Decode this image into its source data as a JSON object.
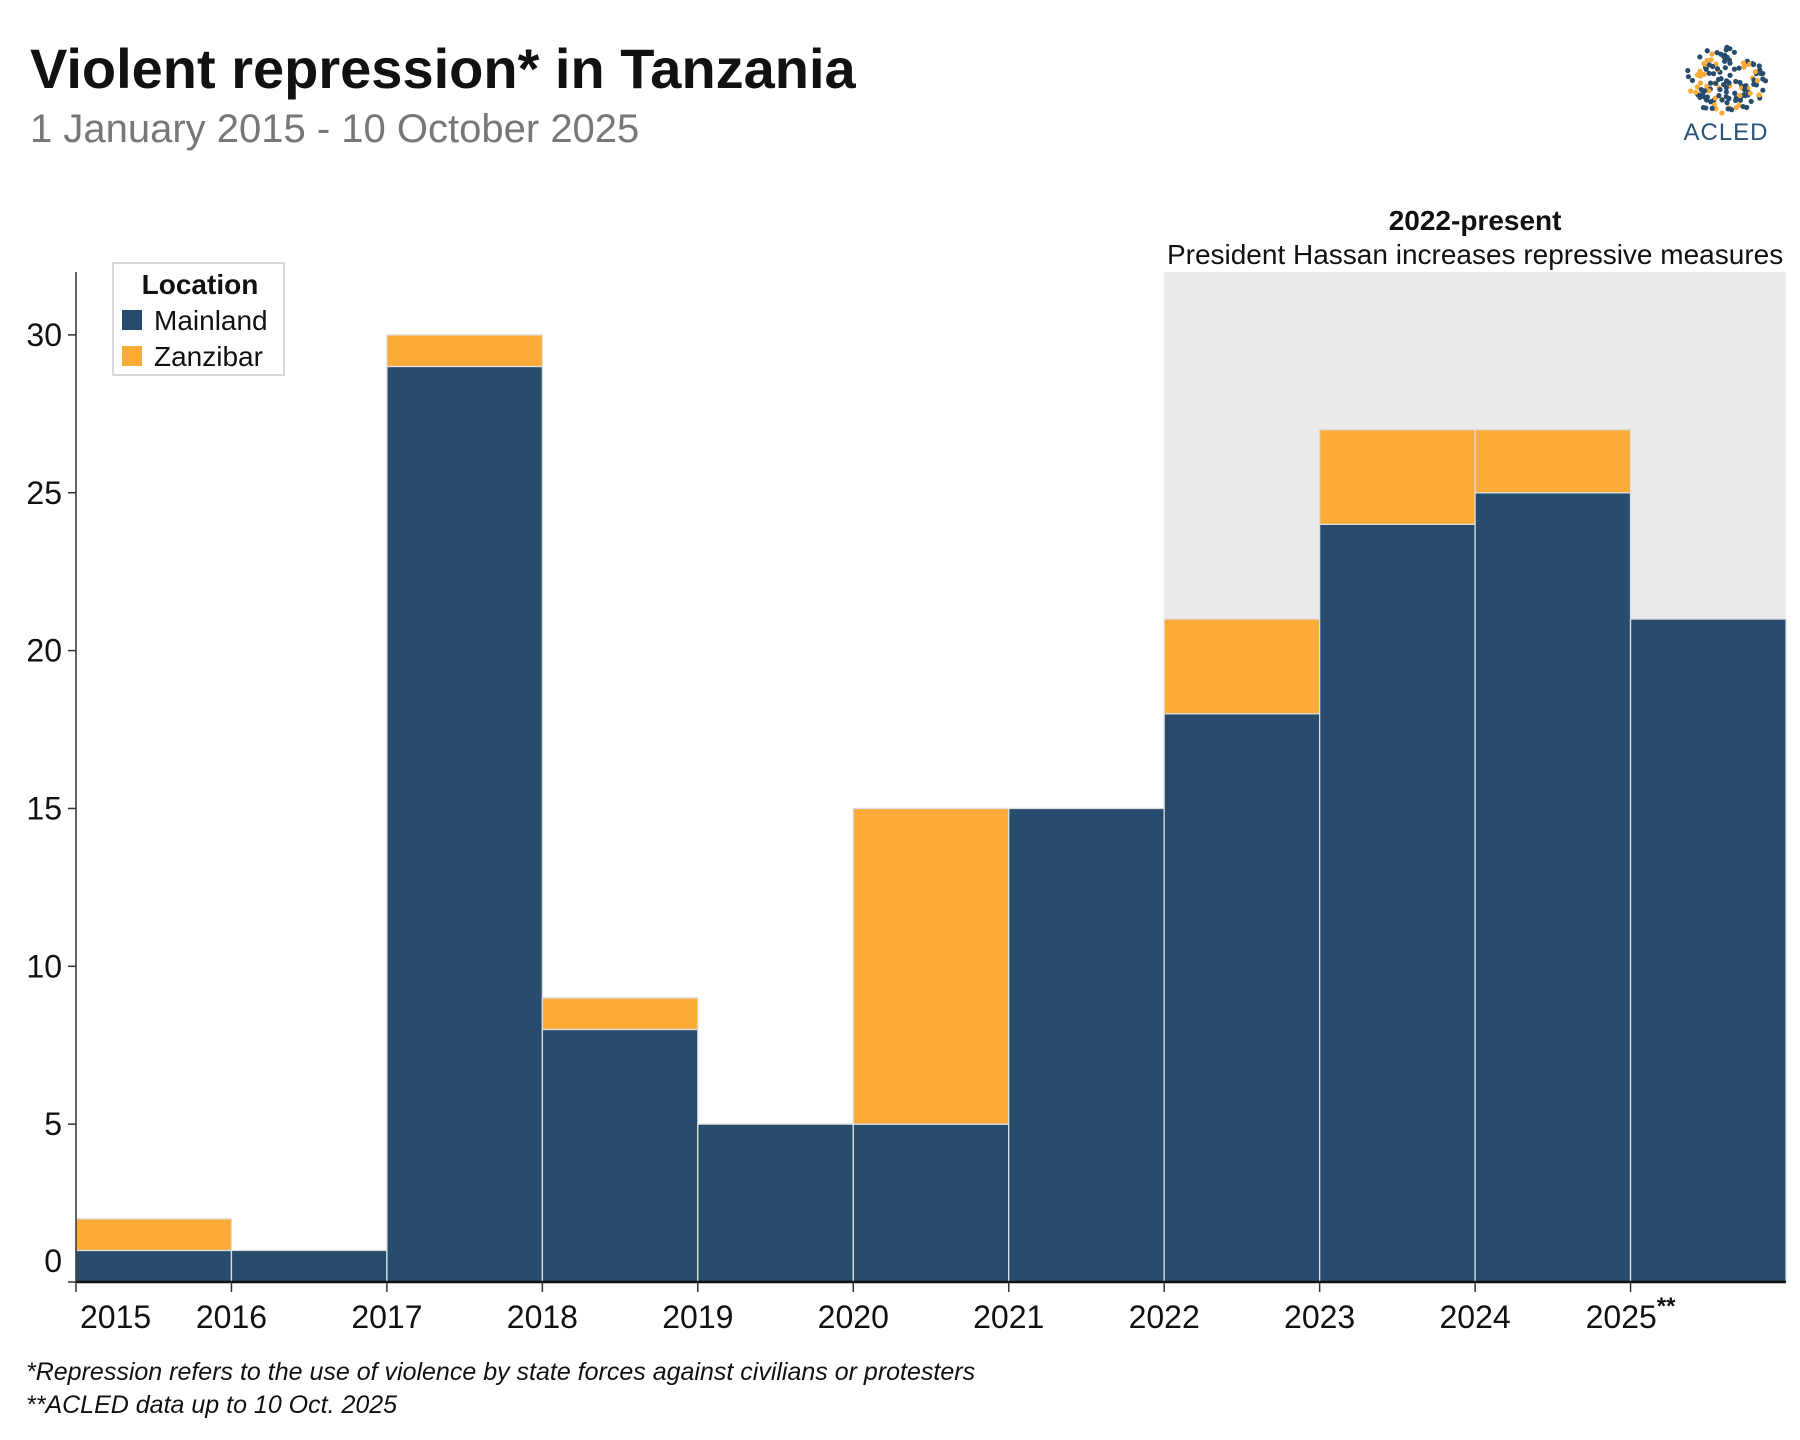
{
  "title": "Violent repression* in Tanzania",
  "subtitle": "1 January 2015 - 10 October 2025",
  "logo_text": "ACLED",
  "footnotes": [
    "*Repression refers to the use of violence by state forces against civilians or protesters",
    "**ACLED data up to 10 Oct. 2025"
  ],
  "colors": {
    "Mainland": "#274c6e",
    "Zanzibar": "#fbab38",
    "shade": "#ebebeb"
  },
  "chart_data": {
    "type": "bar",
    "stacked": true,
    "title": "Violent repression* in Tanzania",
    "subtitle": "1 January 2015 - 10 October 2025",
    "categories": [
      "2015",
      "2016",
      "2017",
      "2018",
      "2019",
      "2020",
      "2021",
      "2022",
      "2023",
      "2024",
      "2025**"
    ],
    "series": [
      {
        "name": "Mainland",
        "values": [
          1,
          1,
          29,
          8,
          5,
          5,
          15,
          18,
          24,
          25,
          21
        ]
      },
      {
        "name": "Zanzibar",
        "values": [
          1,
          0,
          1,
          1,
          0,
          10,
          0,
          3,
          3,
          2,
          0
        ]
      }
    ],
    "ylim": [
      0,
      32
    ],
    "yticks": [
      0,
      5,
      10,
      15,
      20,
      25,
      30
    ],
    "grid": false,
    "legend": {
      "title": "Location",
      "entries": [
        "Mainland",
        "Zanzibar"
      ],
      "placement": "top-left"
    },
    "annotation": {
      "title": "2022-present",
      "text": "President Hassan increases repressive measures",
      "from": "2022",
      "to": "2025**"
    }
  }
}
